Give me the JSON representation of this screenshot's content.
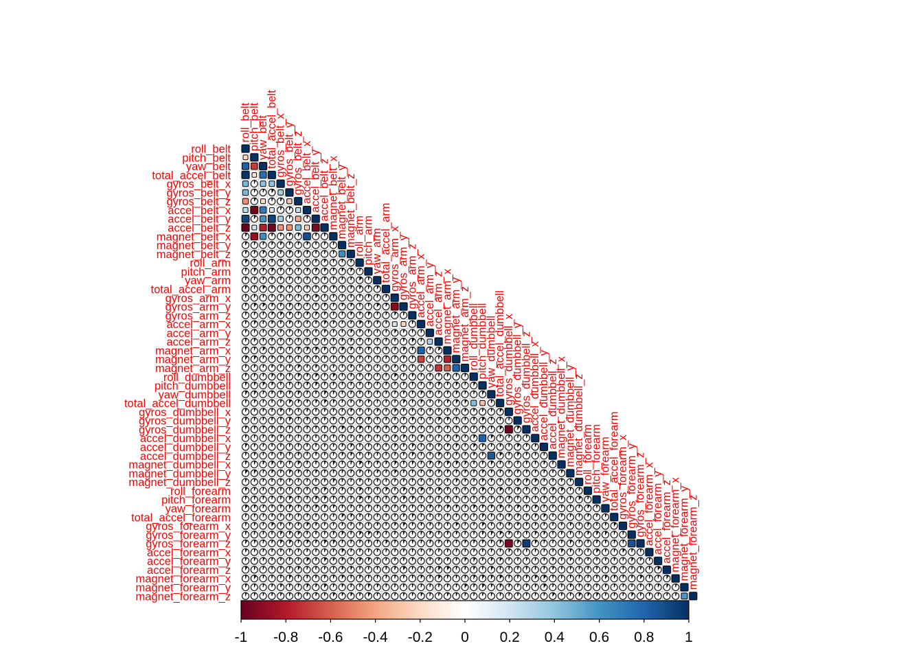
{
  "chart_data": {
    "type": "heatmap",
    "variables": [
      "roll_belt",
      "pitch_belt",
      "yaw_belt",
      "total_accel_belt",
      "gyros_belt_x",
      "gyros_belt_y",
      "gyros_belt_z",
      "accel_belt_x",
      "accel_belt_y",
      "accel_belt_z",
      "magnet_belt_x",
      "magnet_belt_y",
      "magnet_belt_z",
      "roll_arm",
      "pitch_arm",
      "yaw_arm",
      "total_accel_arm",
      "gyros_arm_x",
      "gyros_arm_y",
      "gyros_arm_z",
      "accel_arm_x",
      "accel_arm_y",
      "accel_arm_z",
      "magnet_arm_x",
      "magnet_arm_y",
      "magnet_arm_z",
      "roll_dumbbell",
      "pitch_dumbbell",
      "yaw_dumbbell",
      "total_accel_dumbbell",
      "gyros_dumbbell_x",
      "gyros_dumbbell_y",
      "gyros_dumbbell_z",
      "accel_dumbbell_x",
      "accel_dumbbell_y",
      "accel_dumbbell_z",
      "magnet_dumbbell_x",
      "magnet_dumbbell_y",
      "magnet_dumbbell_z",
      "roll_forearm",
      "pitch_forearm",
      "yaw_forearm",
      "total_accel_forearm",
      "gyros_forearm_x",
      "gyros_forearm_y",
      "gyros_forearm_z",
      "accel_forearm_x",
      "accel_forearm_y",
      "accel_forearm_z",
      "magnet_forearm_x",
      "magnet_forearm_y",
      "magnet_forearm_z"
    ],
    "layout": "lower-triangle",
    "notable_correlations": [
      {
        "row": "pitch_belt",
        "col": "roll_belt",
        "value": -0.2
      },
      {
        "row": "yaw_belt",
        "col": "roll_belt",
        "value": 0.82
      },
      {
        "row": "yaw_belt",
        "col": "pitch_belt",
        "value": -0.7
      },
      {
        "row": "total_accel_belt",
        "col": "roll_belt",
        "value": 0.98
      },
      {
        "row": "total_accel_belt",
        "col": "pitch_belt",
        "value": -0.14
      },
      {
        "row": "total_accel_belt",
        "col": "yaw_belt",
        "value": 0.76
      },
      {
        "row": "gyros_belt_x",
        "col": "roll_belt",
        "value": 0.46
      },
      {
        "row": "gyros_belt_x",
        "col": "yaw_belt",
        "value": 0.4
      },
      {
        "row": "gyros_belt_x",
        "col": "total_accel_belt",
        "value": 0.4
      },
      {
        "row": "gyros_belt_y",
        "col": "roll_belt",
        "value": 0.46
      },
      {
        "row": "gyros_belt_y",
        "col": "gyros_belt_x",
        "value": 0.34
      },
      {
        "row": "gyros_belt_z",
        "col": "roll_belt",
        "value": -0.46
      },
      {
        "row": "gyros_belt_z",
        "col": "yaw_belt",
        "value": -0.2
      },
      {
        "row": "gyros_belt_z",
        "col": "gyros_belt_y",
        "value": -0.28
      },
      {
        "row": "accel_belt_x",
        "col": "roll_belt",
        "value": 0.26
      },
      {
        "row": "accel_belt_x",
        "col": "pitch_belt",
        "value": -0.97
      },
      {
        "row": "accel_belt_x",
        "col": "yaw_belt",
        "value": 0.71
      },
      {
        "row": "accel_belt_x",
        "col": "total_accel_belt",
        "value": 0.17
      },
      {
        "row": "accel_belt_x",
        "col": "gyros_belt_z",
        "value": 0.24
      },
      {
        "row": "accel_belt_y",
        "col": "roll_belt",
        "value": 0.92
      },
      {
        "row": "accel_belt_y",
        "col": "pitch_belt",
        "value": 0.08
      },
      {
        "row": "accel_belt_y",
        "col": "yaw_belt",
        "value": 0.6
      },
      {
        "row": "accel_belt_y",
        "col": "total_accel_belt",
        "value": 0.93
      },
      {
        "row": "accel_belt_y",
        "col": "gyros_belt_x",
        "value": 0.33
      },
      {
        "row": "accel_belt_y",
        "col": "gyros_belt_z",
        "value": -0.4
      },
      {
        "row": "accel_belt_z",
        "col": "roll_belt",
        "value": -0.99
      },
      {
        "row": "accel_belt_z",
        "col": "pitch_belt",
        "value": 0.2
      },
      {
        "row": "accel_belt_z",
        "col": "yaw_belt",
        "value": -0.79
      },
      {
        "row": "accel_belt_z",
        "col": "total_accel_belt",
        "value": -0.97
      },
      {
        "row": "accel_belt_z",
        "col": "gyros_belt_x",
        "value": -0.44
      },
      {
        "row": "accel_belt_z",
        "col": "gyros_belt_y",
        "value": -0.45
      },
      {
        "row": "accel_belt_z",
        "col": "gyros_belt_z",
        "value": 0.45
      },
      {
        "row": "accel_belt_z",
        "col": "accel_belt_x",
        "value": -0.25
      },
      {
        "row": "accel_belt_z",
        "col": "accel_belt_y",
        "value": -0.93
      },
      {
        "row": "magnet_belt_x",
        "col": "pitch_belt",
        "value": -0.88
      },
      {
        "row": "magnet_belt_x",
        "col": "yaw_belt",
        "value": 0.62
      },
      {
        "row": "magnet_belt_x",
        "col": "accel_belt_x",
        "value": 0.89
      },
      {
        "row": "magnet_belt_z",
        "col": "magnet_belt_y",
        "value": 0.62
      },
      {
        "row": "gyros_arm_y",
        "col": "gyros_arm_x",
        "value": -0.92
      },
      {
        "row": "accel_arm_x",
        "col": "gyros_arm_y",
        "value": -0.22
      },
      {
        "row": "accel_arm_x",
        "col": "gyros_arm_x",
        "value": 0.2
      },
      {
        "row": "accel_arm_z",
        "col": "accel_arm_y",
        "value": 0.31
      },
      {
        "row": "magnet_arm_x",
        "col": "accel_arm_x",
        "value": 0.81
      },
      {
        "row": "magnet_arm_y",
        "col": "accel_arm_x",
        "value": -0.69
      },
      {
        "row": "magnet_arm_y",
        "col": "magnet_arm_x",
        "value": -0.78
      },
      {
        "row": "magnet_arm_z",
        "col": "magnet_arm_y",
        "value": 0.81
      },
      {
        "row": "magnet_arm_z",
        "col": "accel_arm_z",
        "value": -0.72
      },
      {
        "row": "magnet_arm_z",
        "col": "magnet_arm_x",
        "value": -0.6
      },
      {
        "row": "total_accel_dumbbell",
        "col": "pitch_dumbbell",
        "value": -0.3
      },
      {
        "row": "total_accel_dumbbell",
        "col": "roll_dumbbell",
        "value": 0.43
      },
      {
        "row": "gyros_dumbbell_z",
        "col": "gyros_dumbbell_x",
        "value": -0.98
      },
      {
        "row": "gyros_forearm_z",
        "col": "gyros_dumbbell_x",
        "value": -0.94
      },
      {
        "row": "gyros_forearm_z",
        "col": "gyros_dumbbell_z",
        "value": 0.95
      },
      {
        "row": "gyros_forearm_z",
        "col": "gyros_forearm_y",
        "value": 0.87
      },
      {
        "row": "accel_dumbbell_x",
        "col": "pitch_dumbbell",
        "value": 0.81
      },
      {
        "row": "accel_dumbbell_z",
        "col": "yaw_dumbbell",
        "value": 0.85
      },
      {
        "row": "magnet_forearm_z",
        "col": "magnet_forearm_y",
        "value": 0.58
      }
    ]
  },
  "colorbar": {
    "ticks": [
      "-1",
      "-0.8",
      "-0.6",
      "-0.4",
      "-0.2",
      "0",
      "0.2",
      "0.4",
      "0.6",
      "0.8",
      "1"
    ],
    "colors": [
      "#67001f",
      "#b2182b",
      "#d6604d",
      "#f4a582",
      "#fddbc7",
      "#ffffff",
      "#d1e5f0",
      "#92c5de",
      "#4393c3",
      "#2166ac",
      "#053061"
    ]
  }
}
